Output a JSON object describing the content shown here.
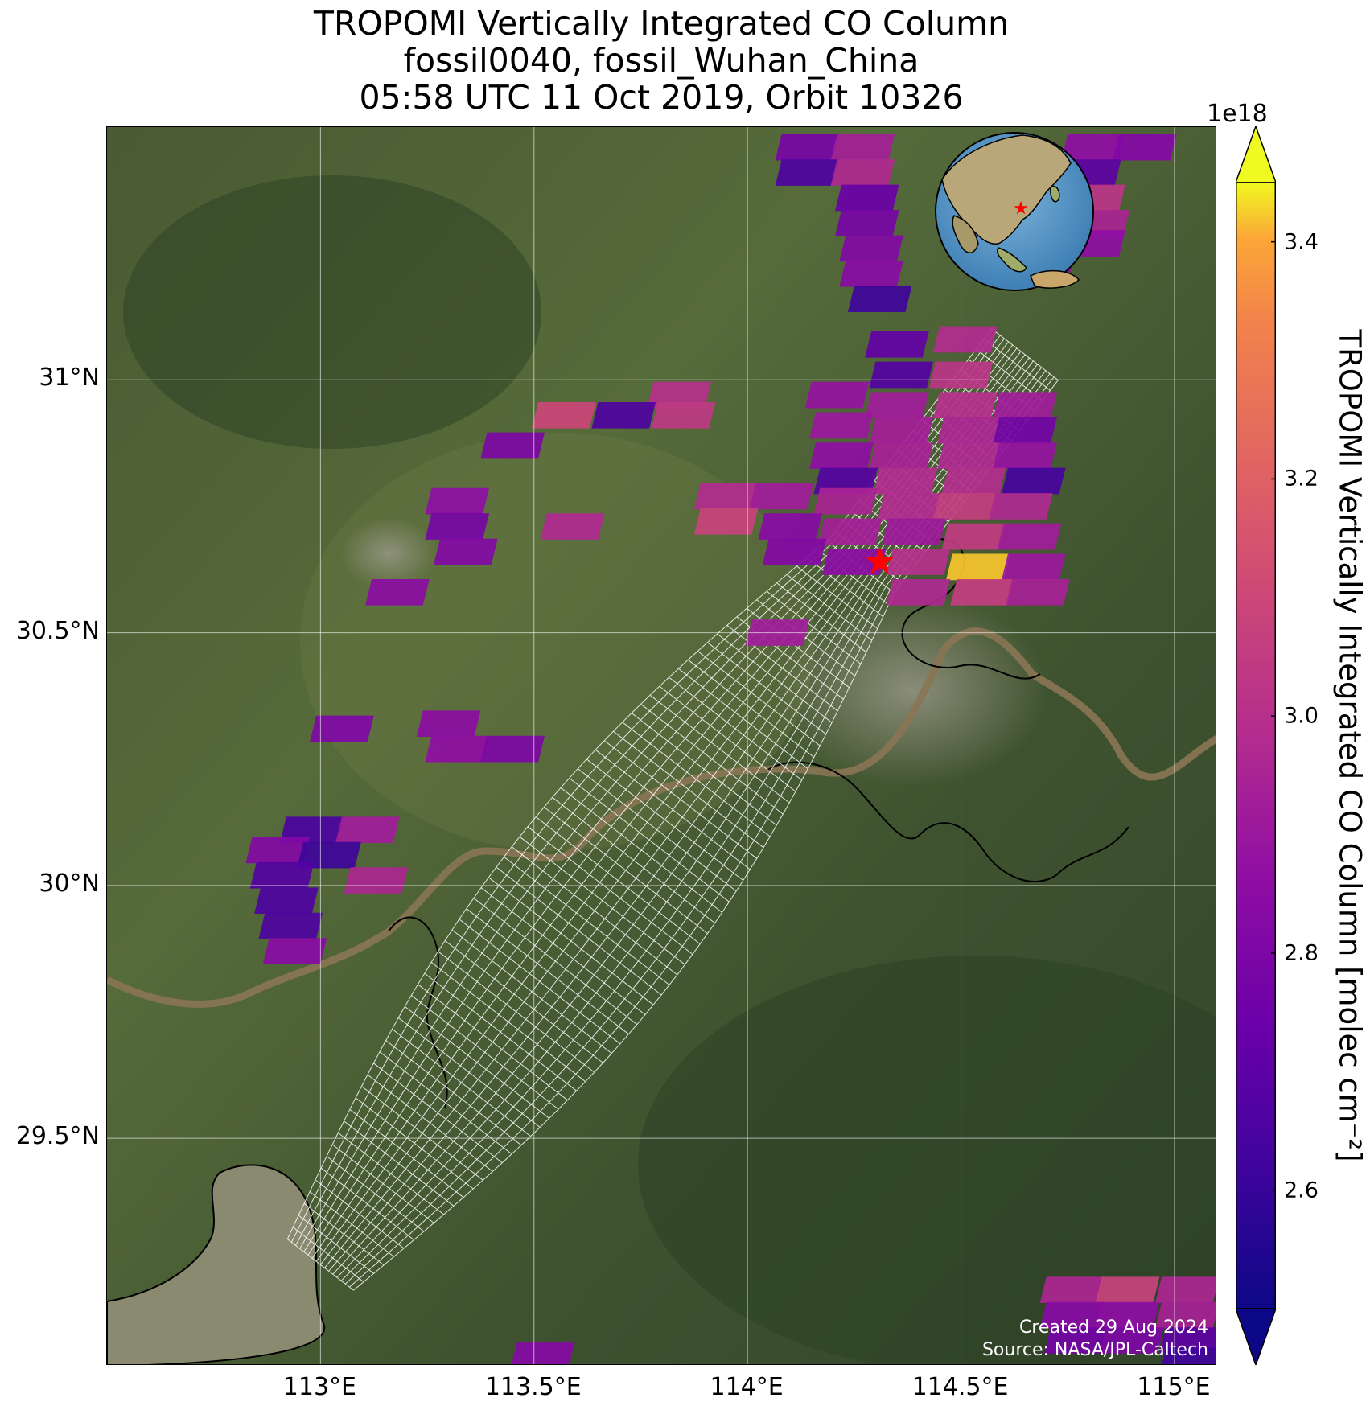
{
  "title": {
    "line1": "TROPOMI Vertically Integrated CO Column",
    "line2": "fossil0040, fossil_Wuhan_China",
    "line3": "05:58 UTC 11 Oct 2019, Orbit 10326"
  },
  "map": {
    "lon_range": [
      112.5,
      115.1
    ],
    "lat_range": [
      29.05,
      31.5
    ],
    "x_ticks": [
      {
        "value": 113.0,
        "label": "113°E"
      },
      {
        "value": 113.5,
        "label": "113.5°E"
      },
      {
        "value": 114.0,
        "label": "114°E"
      },
      {
        "value": 114.5,
        "label": "114.5°E"
      },
      {
        "value": 115.0,
        "label": "115°E"
      }
    ],
    "y_ticks": [
      {
        "value": 31.0,
        "label": "31°N"
      },
      {
        "value": 30.5,
        "label": "30.5°N"
      },
      {
        "value": 30.0,
        "label": "30°N"
      },
      {
        "value": 29.5,
        "label": "29.5°N"
      }
    ],
    "gridlines": true,
    "site_marker": {
      "lon": 114.31,
      "lat": 30.64,
      "symbol": "red-star"
    },
    "basemap": "satellite-imagery",
    "colors": {
      "site": "#ff0000",
      "target_grid": "#ffffff",
      "lake_outline": "#000000"
    }
  },
  "colorbar": {
    "cmap": "plasma",
    "min": 2.5,
    "max": 3.45,
    "extend": "both",
    "multiplier": "1e18",
    "label": "TROPOMI Vertically Integrated CO Column [molec cm⁻²]",
    "ticks": [
      {
        "value": 2.6,
        "label": "2.6"
      },
      {
        "value": 2.8,
        "label": "2.8"
      },
      {
        "value": 3.0,
        "label": "3.0"
      },
      {
        "value": 3.2,
        "label": "3.2"
      },
      {
        "value": 3.4,
        "label": "3.4"
      }
    ]
  },
  "credits": {
    "created": "Created 29 Aug 2024",
    "source": "Source: NASA/JPL-Caltech"
  },
  "inset": {
    "type": "globe",
    "marker": "red-star"
  },
  "chart_data": {
    "type": "heatmap",
    "units": "1e18 molec cm-2",
    "pixels": [
      {
        "lon": 114.14,
        "lat": 31.46,
        "v": 2.78
      },
      {
        "lon": 114.27,
        "lat": 31.46,
        "v": 2.93
      },
      {
        "lon": 114.14,
        "lat": 31.41,
        "v": 2.66
      },
      {
        "lon": 114.27,
        "lat": 31.41,
        "v": 2.97
      },
      {
        "lon": 114.28,
        "lat": 31.36,
        "v": 2.74
      },
      {
        "lon": 114.28,
        "lat": 31.31,
        "v": 2.78
      },
      {
        "lon": 114.29,
        "lat": 31.26,
        "v": 2.82
      },
      {
        "lon": 114.29,
        "lat": 31.21,
        "v": 2.84
      },
      {
        "lon": 114.31,
        "lat": 31.16,
        "v": 2.62
      },
      {
        "lon": 114.81,
        "lat": 31.46,
        "v": 2.86
      },
      {
        "lon": 114.93,
        "lat": 31.46,
        "v": 2.82
      },
      {
        "lon": 114.8,
        "lat": 31.41,
        "v": 2.7
      },
      {
        "lon": 114.81,
        "lat": 31.36,
        "v": 3.02
      },
      {
        "lon": 114.82,
        "lat": 31.31,
        "v": 2.95
      },
      {
        "lon": 114.69,
        "lat": 31.27,
        "v": 2.89
      },
      {
        "lon": 114.81,
        "lat": 31.27,
        "v": 2.86
      },
      {
        "lon": 114.69,
        "lat": 31.22,
        "v": 2.86
      },
      {
        "lon": 114.35,
        "lat": 31.07,
        "v": 2.72
      },
      {
        "lon": 114.51,
        "lat": 31.08,
        "v": 2.98
      },
      {
        "lon": 114.36,
        "lat": 31.01,
        "v": 2.68
      },
      {
        "lon": 114.5,
        "lat": 31.01,
        "v": 3.02
      },
      {
        "lon": 114.21,
        "lat": 30.97,
        "v": 2.88
      },
      {
        "lon": 114.35,
        "lat": 30.95,
        "v": 2.92
      },
      {
        "lon": 114.51,
        "lat": 30.95,
        "v": 3.0
      },
      {
        "lon": 114.65,
        "lat": 30.95,
        "v": 2.92
      },
      {
        "lon": 114.22,
        "lat": 30.91,
        "v": 2.9
      },
      {
        "lon": 114.36,
        "lat": 30.9,
        "v": 2.93
      },
      {
        "lon": 114.52,
        "lat": 30.9,
        "v": 2.96
      },
      {
        "lon": 114.65,
        "lat": 30.9,
        "v": 2.77
      },
      {
        "lon": 114.22,
        "lat": 30.85,
        "v": 2.86
      },
      {
        "lon": 114.36,
        "lat": 30.85,
        "v": 2.94
      },
      {
        "lon": 114.52,
        "lat": 30.85,
        "v": 2.97
      },
      {
        "lon": 114.65,
        "lat": 30.85,
        "v": 2.88
      },
      {
        "lon": 114.23,
        "lat": 30.8,
        "v": 2.68
      },
      {
        "lon": 114.37,
        "lat": 30.8,
        "v": 2.98
      },
      {
        "lon": 114.53,
        "lat": 30.8,
        "v": 2.99
      },
      {
        "lon": 114.67,
        "lat": 30.8,
        "v": 2.64
      },
      {
        "lon": 113.84,
        "lat": 30.97,
        "v": 3.0
      },
      {
        "lon": 113.71,
        "lat": 30.93,
        "v": 2.66
      },
      {
        "lon": 113.57,
        "lat": 30.93,
        "v": 3.1
      },
      {
        "lon": 113.85,
        "lat": 30.93,
        "v": 3.04
      },
      {
        "lon": 113.45,
        "lat": 30.87,
        "v": 2.8
      },
      {
        "lon": 113.95,
        "lat": 30.77,
        "v": 2.98
      },
      {
        "lon": 114.08,
        "lat": 30.77,
        "v": 2.92
      },
      {
        "lon": 114.23,
        "lat": 30.76,
        "v": 2.95
      },
      {
        "lon": 114.38,
        "lat": 30.75,
        "v": 2.98
      },
      {
        "lon": 114.51,
        "lat": 30.75,
        "v": 3.06
      },
      {
        "lon": 114.64,
        "lat": 30.75,
        "v": 2.97
      },
      {
        "lon": 113.95,
        "lat": 30.72,
        "v": 3.08
      },
      {
        "lon": 114.1,
        "lat": 30.71,
        "v": 2.84
      },
      {
        "lon": 114.24,
        "lat": 30.7,
        "v": 2.93
      },
      {
        "lon": 114.39,
        "lat": 30.7,
        "v": 2.91
      },
      {
        "lon": 114.53,
        "lat": 30.69,
        "v": 3.05
      },
      {
        "lon": 114.66,
        "lat": 30.69,
        "v": 2.92
      },
      {
        "lon": 114.11,
        "lat": 30.66,
        "v": 2.82
      },
      {
        "lon": 114.25,
        "lat": 30.64,
        "v": 2.85
      },
      {
        "lon": 114.4,
        "lat": 30.64,
        "v": 3.0
      },
      {
        "lon": 114.54,
        "lat": 30.63,
        "v": 3.42
      },
      {
        "lon": 114.67,
        "lat": 30.63,
        "v": 2.9
      },
      {
        "lon": 114.4,
        "lat": 30.58,
        "v": 2.97
      },
      {
        "lon": 114.55,
        "lat": 30.58,
        "v": 3.06
      },
      {
        "lon": 114.68,
        "lat": 30.58,
        "v": 2.94
      },
      {
        "lon": 113.32,
        "lat": 30.76,
        "v": 2.86
      },
      {
        "lon": 113.32,
        "lat": 30.71,
        "v": 2.78
      },
      {
        "lon": 113.34,
        "lat": 30.66,
        "v": 2.82
      },
      {
        "lon": 113.59,
        "lat": 30.71,
        "v": 2.97
      },
      {
        "lon": 113.18,
        "lat": 30.58,
        "v": 2.85
      },
      {
        "lon": 114.07,
        "lat": 30.5,
        "v": 2.92
      },
      {
        "lon": 113.05,
        "lat": 30.31,
        "v": 2.81
      },
      {
        "lon": 113.3,
        "lat": 30.32,
        "v": 2.85
      },
      {
        "lon": 113.32,
        "lat": 30.27,
        "v": 2.86
      },
      {
        "lon": 113.45,
        "lat": 30.27,
        "v": 2.8
      },
      {
        "lon": 112.98,
        "lat": 30.11,
        "v": 2.65
      },
      {
        "lon": 113.11,
        "lat": 30.11,
        "v": 2.92
      },
      {
        "lon": 112.9,
        "lat": 30.07,
        "v": 2.82
      },
      {
        "lon": 113.02,
        "lat": 30.06,
        "v": 2.62
      },
      {
        "lon": 112.91,
        "lat": 30.02,
        "v": 2.68
      },
      {
        "lon": 113.13,
        "lat": 30.01,
        "v": 2.96
      },
      {
        "lon": 112.92,
        "lat": 29.97,
        "v": 2.66
      },
      {
        "lon": 112.93,
        "lat": 29.92,
        "v": 2.66
      },
      {
        "lon": 112.94,
        "lat": 29.87,
        "v": 2.84
      },
      {
        "lon": 114.76,
        "lat": 29.2,
        "v": 2.96
      },
      {
        "lon": 114.89,
        "lat": 29.2,
        "v": 3.08
      },
      {
        "lon": 115.03,
        "lat": 29.2,
        "v": 2.96
      },
      {
        "lon": 114.76,
        "lat": 29.15,
        "v": 2.84
      },
      {
        "lon": 114.89,
        "lat": 29.15,
        "v": 2.86
      },
      {
        "lon": 115.03,
        "lat": 29.15,
        "v": 2.94
      },
      {
        "lon": 114.77,
        "lat": 29.1,
        "v": 2.77
      },
      {
        "lon": 114.9,
        "lat": 29.1,
        "v": 2.8
      },
      {
        "lon": 115.04,
        "lat": 29.1,
        "v": 2.7
      },
      {
        "lon": 115.04,
        "lat": 29.06,
        "v": 2.62
      },
      {
        "lon": 113.52,
        "lat": 29.07,
        "v": 2.83
      }
    ]
  }
}
